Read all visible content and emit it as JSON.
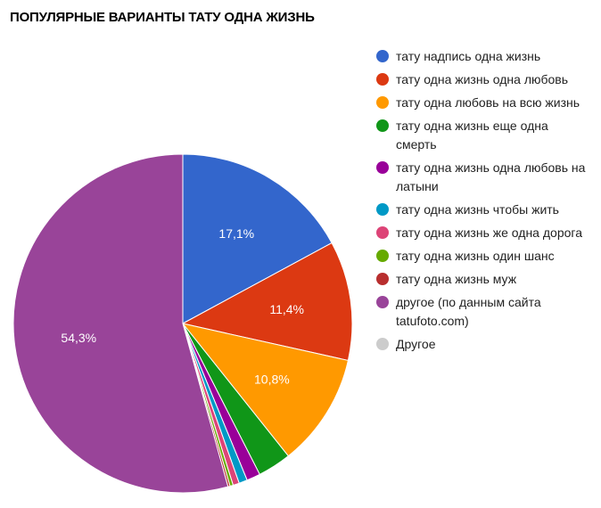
{
  "title": "ПОПУЛЯРНЫЕ ВАРИАНТЫ ТАТУ ОДНА ЖИЗНЬ",
  "chart_data": {
    "type": "pie",
    "title": "ПОПУЛЯРНЫЕ ВАРИАНТЫ ТАТУ ОДНА ЖИЗНЬ",
    "legend_position": "right",
    "categories": [
      "тату надпись одна жизнь",
      "тату одна жизнь одна любовь",
      "тату одна любовь на всю жизнь",
      "тату одна жизнь еще одна смерть",
      "тату одна жизнь одна любовь на латыни",
      "тату одна жизнь чтобы жить",
      "тату одна жизнь же одна дорога",
      "тату одна жизнь один шанс",
      "тату одна жизнь муж",
      "другое (по данным сайта tatufoto.com)",
      "Другое"
    ],
    "values": [
      17.1,
      11.4,
      10.8,
      3.2,
      1.3,
      0.8,
      0.6,
      0.3,
      0.2,
      54.3,
      0.0
    ],
    "labels": [
      "17,1%",
      "11,4%",
      "10,8%",
      "",
      "",
      "",
      "",
      "",
      "",
      "54,3%",
      ""
    ],
    "colors": [
      "#3366cc",
      "#dc3912",
      "#ff9900",
      "#109618",
      "#990099",
      "#0099c6",
      "#dd4477",
      "#66aa00",
      "#b82e2e",
      "#994499",
      "#cccccc"
    ]
  },
  "legend": {
    "items": [
      {
        "label": "тату надпись одна жизнь",
        "color": "#3366cc"
      },
      {
        "label": "тату одна жизнь одна любовь",
        "color": "#dc3912"
      },
      {
        "label": "тату одна любовь на всю жизнь",
        "color": "#ff9900"
      },
      {
        "label": "тату одна жизнь еще одна смерть",
        "color": "#109618"
      },
      {
        "label": "тату одна жизнь одна любовь на латыни",
        "color": "#990099"
      },
      {
        "label": "тату одна жизнь чтобы жить",
        "color": "#0099c6"
      },
      {
        "label": "тату одна жизнь же одна дорога",
        "color": "#dd4477"
      },
      {
        "label": "тату одна жизнь один шанс",
        "color": "#66aa00"
      },
      {
        "label": "тату одна жизнь муж",
        "color": "#b82e2e"
      },
      {
        "label": "другое (по данным сайта tatufoto.com)",
        "color": "#994499"
      },
      {
        "label": "Другое",
        "color": "#cccccc"
      }
    ]
  }
}
